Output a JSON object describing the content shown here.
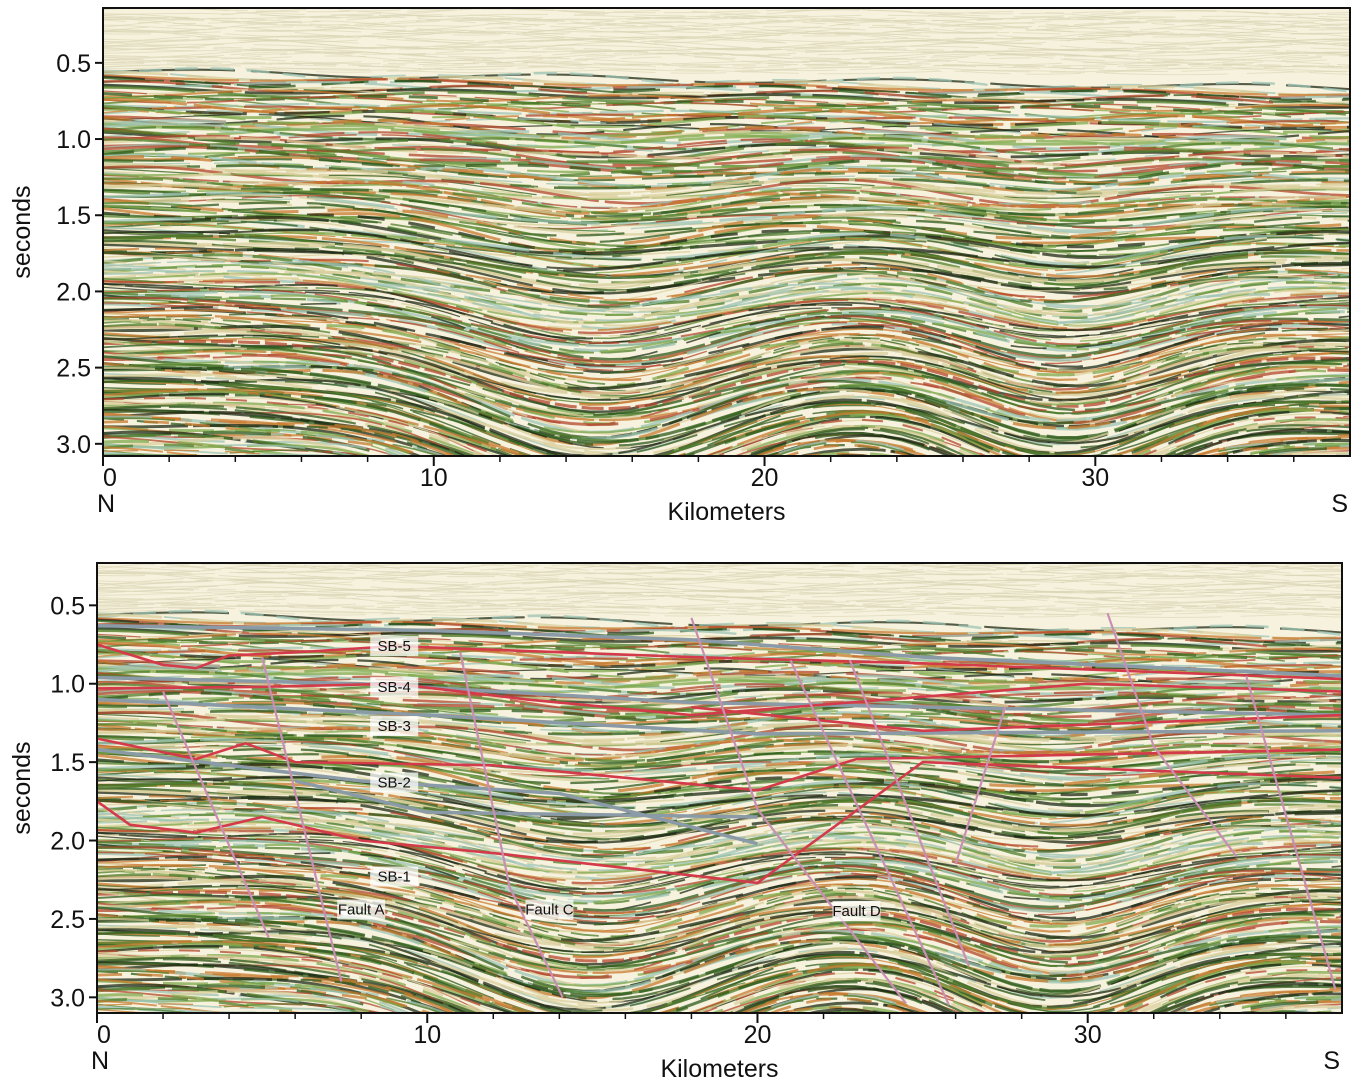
{
  "chart_data": [
    {
      "type": "section",
      "xlabel": "Kilometers",
      "ylabel": "seconds",
      "left_label": "N",
      "right_label": "S",
      "xlim": [
        0,
        37.7
      ],
      "ylim": [
        3.08,
        0.14
      ],
      "xticks": [
        0,
        10,
        20,
        30
      ],
      "xminor_ticks": [
        2,
        4,
        6,
        8,
        12,
        14,
        16,
        18,
        22,
        24,
        26,
        28,
        32,
        34,
        36
      ],
      "yticks": [
        0.5,
        {
          "value": 1,
          "label": "1.0"
        },
        1.5,
        {
          "value": 2,
          "label": "2.0"
        },
        2.5,
        {
          "value": 3,
          "label": "3.0"
        }
      ]
    },
    {
      "type": "section",
      "xlabel": "Kilometers",
      "ylabel": "seconds",
      "left_label": "N",
      "right_label": "S",
      "xlim": [
        0,
        37.7
      ],
      "ylim": [
        3.1,
        0.23
      ],
      "xticks": [
        0,
        10,
        20,
        30
      ],
      "xminor_ticks": [
        2,
        4,
        6,
        8,
        12,
        14,
        16,
        18,
        22,
        24,
        26,
        28,
        32,
        34,
        36
      ],
      "yticks": [
        0.5,
        {
          "value": 1,
          "label": "1.0"
        },
        1.5,
        {
          "value": 2,
          "label": "2.0"
        },
        2.5,
        {
          "value": 3,
          "label": "3.0"
        }
      ],
      "annotations": [
        "SB-5",
        "SB-4",
        "SB-3",
        "SB-2",
        "SB-1",
        "Fault A",
        "Fault C",
        "Fault D"
      ]
    }
  ]
}
